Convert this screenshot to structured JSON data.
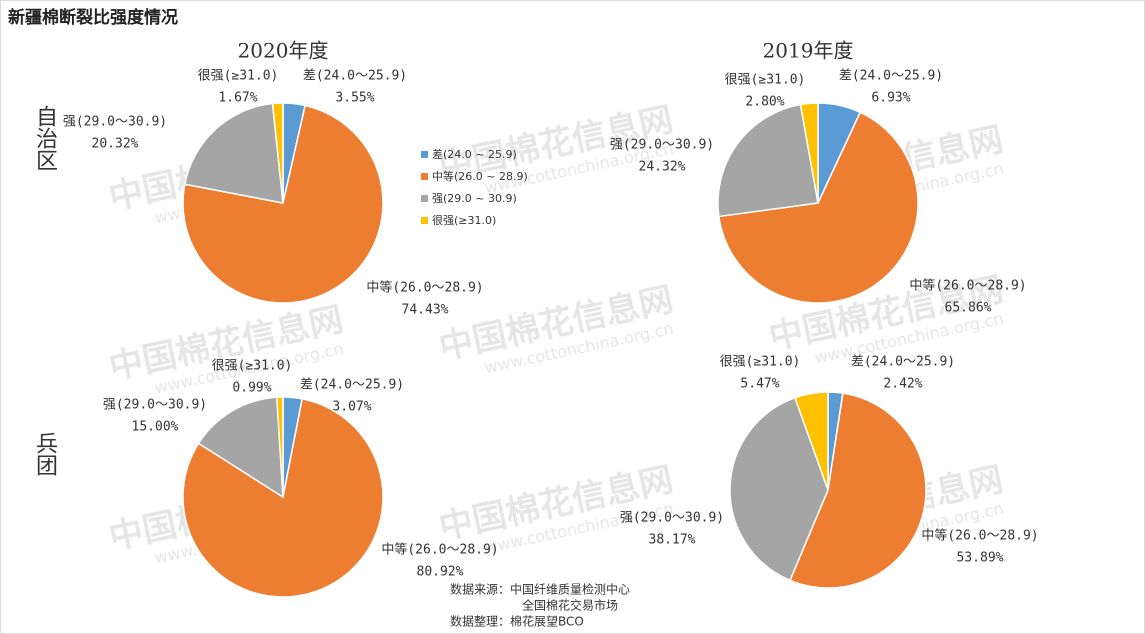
{
  "title": "新疆棉断裂比强度情况",
  "columns": [
    "2020年度",
    "2019年度"
  ],
  "rows": [
    "自治区",
    "兵团"
  ],
  "legend": [
    "差(24.0 ~ 25.9)",
    "中等(26.0 ~ 28.9)",
    "强(29.0 ~ 30.9)",
    "很强(≥31.0)"
  ],
  "source": [
    "数据来源：中国纤维质量检测中心",
    "全国棉花交易市场",
    "数据整理：棉花展望BCO"
  ],
  "watermark": [
    "中国棉花信息网",
    "www.cottonchina.org.cn"
  ],
  "chart_data": [
    {
      "type": "pie",
      "categories": [
        "差(24.0～25.9)",
        "中等(26.0～28.9)",
        "强(29.0～30.9)",
        "很强(≥31.0)"
      ],
      "colors": [
        "#5b9bd5",
        "#ed7d31",
        "#a5a5a5",
        "#ffc000"
      ],
      "values": [
        3.55,
        74.43,
        20.32,
        1.67
      ],
      "value_labels": [
        "3.55%",
        "74.43%",
        "20.32%",
        "1.67%"
      ]
    },
    {
      "type": "pie",
      "categories": [
        "差(24.0～25.9)",
        "中等(26.0～28.9)",
        "强(29.0～30.9)",
        "很强(≥31.0)"
      ],
      "colors": [
        "#5b9bd5",
        "#ed7d31",
        "#a5a5a5",
        "#ffc000"
      ],
      "values": [
        6.93,
        65.86,
        24.32,
        2.8
      ],
      "value_labels": [
        "6.93%",
        "65.86%",
        "24.32%",
        "2.80%"
      ]
    },
    {
      "type": "pie",
      "categories": [
        "差(24.0～25.9)",
        "中等(26.0～28.9)",
        "强(29.0～30.9)",
        "很强(≥31.0)"
      ],
      "colors": [
        "#5b9bd5",
        "#ed7d31",
        "#a5a5a5",
        "#ffc000"
      ],
      "values": [
        3.07,
        80.92,
        15.0,
        0.99
      ],
      "value_labels": [
        "3.07%",
        "80.92%",
        "15.00%",
        "0.99%"
      ]
    },
    {
      "type": "pie",
      "categories": [
        "差(24.0～25.9)",
        "中等(26.0～28.9)",
        "强(29.0～30.9)",
        "很强(≥31.0)"
      ],
      "colors": [
        "#5b9bd5",
        "#ed7d31",
        "#a5a5a5",
        "#ffc000"
      ],
      "values": [
        2.42,
        53.89,
        38.17,
        5.47
      ],
      "value_labels": [
        "2.42%",
        "53.89%",
        "38.17%",
        "5.47%"
      ]
    }
  ]
}
